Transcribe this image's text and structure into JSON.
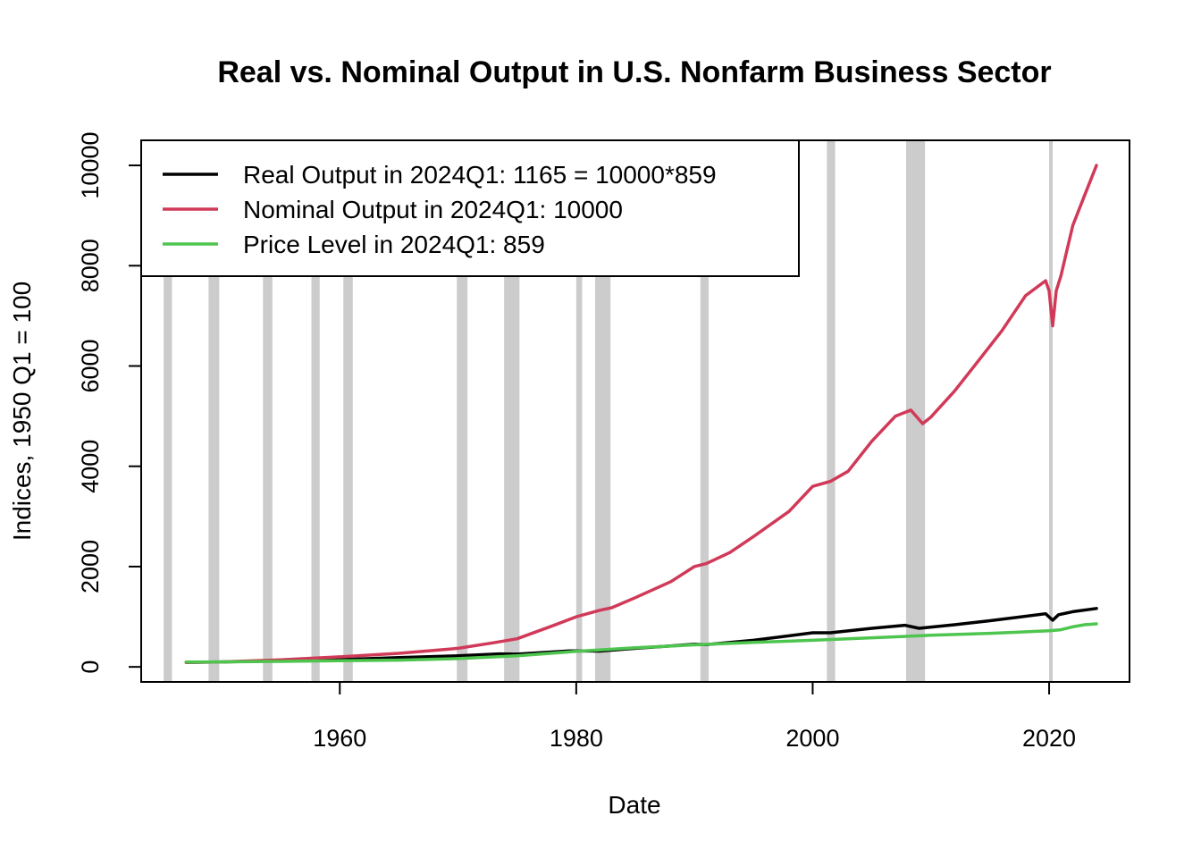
{
  "chart_data": {
    "type": "line",
    "title": "Real vs. Nominal Output in U.S. Nonfarm Business Sector",
    "xlabel": "Date",
    "ylabel": "Indices, 1950 Q1 = 100",
    "xlim": [
      1943.2,
      2026.8
    ],
    "ylim": [
      -300,
      10500
    ],
    "x_ticks": [
      1960,
      1980,
      2000,
      2020
    ],
    "y_ticks": [
      0,
      2000,
      4000,
      6000,
      8000,
      10000
    ],
    "grid": false,
    "legend_position": "top-left",
    "recessions": [
      [
        1945.1,
        1945.8
      ],
      [
        1948.9,
        1949.8
      ],
      [
        1953.5,
        1954.3
      ],
      [
        1957.6,
        1958.3
      ],
      [
        1960.3,
        1961.1
      ],
      [
        1969.9,
        1970.8
      ],
      [
        1973.9,
        1975.2
      ],
      [
        1980.0,
        1980.5
      ],
      [
        1981.6,
        1982.9
      ],
      [
        1990.5,
        1991.2
      ],
      [
        2001.2,
        2001.9
      ],
      [
        2007.9,
        2009.5
      ],
      [
        2020.0,
        2020.3
      ]
    ],
    "series": [
      {
        "name": "Real Output in 2024Q1: 1165 = 10000*859",
        "color": "#000000",
        "x": [
          1947.0,
          1950.0,
          1955.0,
          1960.0,
          1965.0,
          1970.0,
          1973.5,
          1975.0,
          1979.5,
          1982.0,
          1985.0,
          1990.0,
          1991.0,
          1995.0,
          2000.0,
          2001.5,
          2005.0,
          2007.8,
          2009.0,
          2012.0,
          2015.0,
          2019.7,
          2020.3,
          2020.8,
          2022.0,
          2024.0
        ],
        "values": [
          90,
          100,
          125,
          145,
          185,
          220,
          260,
          255,
          320,
          315,
          370,
          450,
          445,
          530,
          680,
          680,
          770,
          830,
          770,
          840,
          920,
          1060,
          930,
          1040,
          1100,
          1165
        ]
      },
      {
        "name": "Nominal Output in 2024Q1: 10000",
        "color": "#d03a58",
        "x": [
          1947.0,
          1950.0,
          1955.0,
          1960.0,
          1965.0,
          1970.0,
          1973.0,
          1975.0,
          1978.0,
          1980.0,
          1982.0,
          1983.0,
          1985.0,
          1988.0,
          1990.0,
          1991.0,
          1993.0,
          1995.0,
          1998.0,
          2000.0,
          2001.5,
          2003.0,
          2005.0,
          2007.0,
          2008.3,
          2009.3,
          2010.0,
          2012.0,
          2014.0,
          2016.0,
          2018.0,
          2019.7,
          2020.0,
          2020.3,
          2020.6,
          2021.0,
          2021.5,
          2022.0,
          2023.0,
          2024.0
        ],
        "values": [
          90,
          100,
          140,
          200,
          270,
          370,
          480,
          560,
          820,
          1000,
          1130,
          1180,
          1380,
          1700,
          2000,
          2060,
          2280,
          2600,
          3100,
          3600,
          3700,
          3900,
          4500,
          5000,
          5120,
          4850,
          4980,
          5500,
          6100,
          6700,
          7400,
          7700,
          7500,
          6800,
          7500,
          7800,
          8300,
          8800,
          9400,
          10000
        ]
      },
      {
        "name": "Price Level in 2024Q1: 859",
        "color": "#4ec54e",
        "x": [
          1947.0,
          1950.0,
          1955.0,
          1960.0,
          1965.0,
          1970.0,
          1975.0,
          1980.0,
          1985.0,
          1990.0,
          1995.0,
          2000.0,
          2005.0,
          2010.0,
          2015.0,
          2020.0,
          2021.0,
          2022.0,
          2023.0,
          2024.0
        ],
        "values": [
          95,
          100,
          110,
          125,
          135,
          165,
          220,
          310,
          380,
          440,
          490,
          530,
          580,
          630,
          670,
          720,
          740,
          800,
          840,
          859
        ]
      }
    ]
  }
}
